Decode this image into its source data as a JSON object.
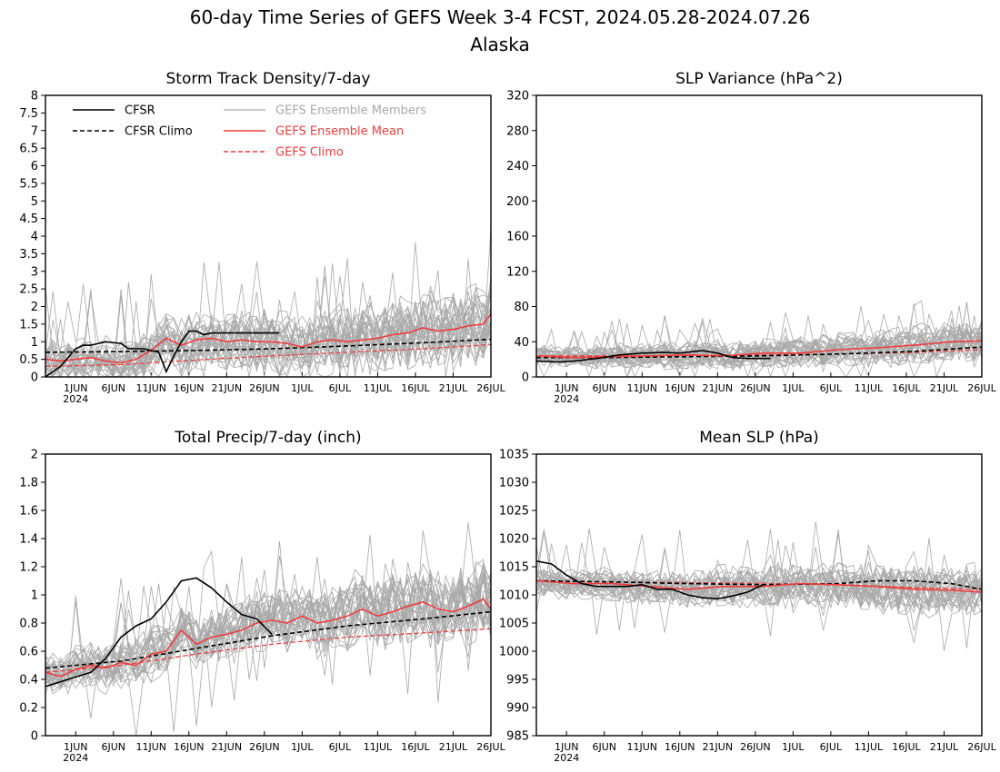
{
  "title": "60-day Time Series of GEFS Week 3-4 FCST, 2024.05.28-2024.07.26",
  "subtitle": "Alaska",
  "colors": {
    "member": "#a8a8a8",
    "cfsr": "#000000",
    "mean": "#f03c3c",
    "gefs_climo": "#f03c3c"
  },
  "legend": {
    "cfsr": "CFSR",
    "cfsr_climo": "CFSR Climo",
    "members": "GEFS Ensemble Members",
    "mean": "GEFS Ensemble Mean",
    "gefs_climo": "GEFS Climo"
  },
  "x_ticks": {
    "days": [
      4,
      9,
      14,
      19,
      24,
      29,
      34,
      39,
      44,
      49,
      54,
      59
    ],
    "labels": [
      "1JUN",
      "6JUN",
      "11JUN",
      "16JUN",
      "21JUN",
      "26JUN",
      "1JUL",
      "6JUL",
      "11JUL",
      "16JUL",
      "21JUL",
      "26JUL"
    ],
    "year_label": "2024"
  },
  "chart_data": [
    {
      "type": "line",
      "title": "Storm Track Density/7-day",
      "x_unit": "day index from 2024-05-28",
      "xlim": [
        0,
        59
      ],
      "ylim": [
        0,
        8
      ],
      "y_ticks": [
        "0",
        "0.5",
        "1",
        "1.5",
        "2",
        "2.5",
        "3",
        "3.5",
        "4",
        "4.5",
        "5",
        "5.5",
        "6",
        "6.5",
        "7",
        "7.5",
        "8"
      ],
      "member_count": 30,
      "member_spread": 0.7,
      "member_seed": 11,
      "series": [
        {
          "key": "cfsr",
          "style": "solid-black",
          "x": [
            0,
            2,
            4,
            5,
            6,
            8,
            10,
            11,
            13,
            15,
            16,
            17,
            18,
            19,
            20,
            21,
            22,
            24,
            26,
            28,
            31
          ],
          "y": [
            0.0,
            0.3,
            0.8,
            0.9,
            0.9,
            1.0,
            0.95,
            0.8,
            0.8,
            0.7,
            0.15,
            0.6,
            1.0,
            1.3,
            1.3,
            1.2,
            1.25,
            1.25,
            1.25,
            1.25,
            1.25
          ]
        },
        {
          "key": "cfsr_climo",
          "style": "dashed-black",
          "x": [
            0,
            10,
            20,
            30,
            40,
            50,
            59
          ],
          "y": [
            0.7,
            0.72,
            0.75,
            0.8,
            0.88,
            0.97,
            1.07
          ]
        },
        {
          "key": "mean",
          "style": "solid-red",
          "x": [
            0,
            2,
            4,
            6,
            8,
            10,
            12,
            14,
            16,
            18,
            20,
            22,
            24,
            26,
            28,
            30,
            32,
            34,
            36,
            38,
            40,
            42,
            44,
            46,
            48,
            50,
            52,
            54,
            56,
            58,
            59
          ],
          "y": [
            0.5,
            0.45,
            0.5,
            0.55,
            0.45,
            0.4,
            0.5,
            0.75,
            1.1,
            0.9,
            1.05,
            1.1,
            1.0,
            1.05,
            1.0,
            1.0,
            0.95,
            0.85,
            1.0,
            1.05,
            1.0,
            1.05,
            1.1,
            1.2,
            1.25,
            1.4,
            1.3,
            1.35,
            1.45,
            1.5,
            1.8
          ]
        },
        {
          "key": "gefs_climo",
          "style": "dashed-red",
          "x": [
            0,
            10,
            20,
            30,
            40,
            50,
            59
          ],
          "y": [
            0.3,
            0.35,
            0.48,
            0.6,
            0.7,
            0.8,
            0.92
          ]
        }
      ]
    },
    {
      "type": "line",
      "title": "SLP Variance (hPa^2)",
      "x_unit": "day index from 2024-05-28",
      "xlim": [
        0,
        59
      ],
      "ylim": [
        0,
        320
      ],
      "y_ticks": [
        "0",
        "40",
        "80",
        "120",
        "160",
        "200",
        "240",
        "280",
        "320"
      ],
      "member_count": 30,
      "member_spread": 14,
      "member_seed": 23,
      "series": [
        {
          "key": "cfsr",
          "style": "solid-black",
          "x": [
            0,
            3,
            5,
            8,
            11,
            14,
            17,
            19,
            22,
            24,
            26,
            28,
            31
          ],
          "y": [
            18,
            17,
            18,
            21,
            25,
            27,
            28,
            27,
            30,
            27,
            22,
            21,
            21
          ]
        },
        {
          "key": "cfsr_climo",
          "style": "dashed-black",
          "x": [
            0,
            10,
            20,
            30,
            40,
            50,
            59
          ],
          "y": [
            22,
            22,
            23,
            24,
            26,
            29,
            34
          ]
        },
        {
          "key": "mean",
          "style": "solid-red",
          "x": [
            0,
            5,
            10,
            15,
            20,
            25,
            30,
            35,
            40,
            45,
            50,
            55,
            59
          ],
          "y": [
            24,
            22,
            23,
            24,
            25,
            24,
            27,
            27,
            31,
            33,
            36,
            40,
            41
          ]
        },
        {
          "key": "gefs_climo",
          "style": "dashed-red",
          "x": [
            0,
            10,
            20,
            30,
            40,
            50,
            59
          ],
          "y": [
            24,
            24,
            24,
            25,
            26,
            28,
            31
          ]
        }
      ]
    },
    {
      "type": "line",
      "title": "Total Precip/7-day (inch)",
      "x_unit": "day index from 2024-05-28",
      "xlim": [
        0,
        59
      ],
      "ylim": [
        0,
        2
      ],
      "y_ticks": [
        "0",
        "0.2",
        "0.4",
        "0.6",
        "0.8",
        "1",
        "1.2",
        "1.4",
        "1.6",
        "1.8",
        "2"
      ],
      "member_count": 30,
      "member_spread": 0.18,
      "member_seed": 37,
      "series": [
        {
          "key": "cfsr",
          "style": "solid-black",
          "x": [
            0,
            3,
            6,
            8,
            10,
            12,
            14,
            16,
            18,
            20,
            22,
            24,
            26,
            28,
            30
          ],
          "y": [
            0.35,
            0.4,
            0.45,
            0.55,
            0.7,
            0.78,
            0.83,
            0.95,
            1.1,
            1.12,
            1.05,
            0.95,
            0.86,
            0.83,
            0.72
          ]
        },
        {
          "key": "cfsr_climo",
          "style": "dashed-black",
          "x": [
            0,
            10,
            20,
            30,
            40,
            50,
            59
          ],
          "y": [
            0.48,
            0.53,
            0.62,
            0.71,
            0.78,
            0.83,
            0.88
          ]
        },
        {
          "key": "mean",
          "style": "solid-red",
          "x": [
            0,
            2,
            4,
            6,
            8,
            10,
            12,
            14,
            16,
            18,
            20,
            22,
            24,
            26,
            28,
            30,
            32,
            34,
            36,
            38,
            40,
            42,
            44,
            46,
            48,
            50,
            52,
            54,
            56,
            58,
            59
          ],
          "y": [
            0.45,
            0.42,
            0.47,
            0.5,
            0.48,
            0.52,
            0.5,
            0.58,
            0.6,
            0.75,
            0.65,
            0.7,
            0.72,
            0.75,
            0.8,
            0.82,
            0.8,
            0.85,
            0.8,
            0.82,
            0.85,
            0.9,
            0.85,
            0.88,
            0.92,
            0.95,
            0.9,
            0.88,
            0.92,
            0.97,
            0.9
          ]
        },
        {
          "key": "gefs_climo",
          "style": "dashed-red",
          "x": [
            0,
            10,
            20,
            30,
            40,
            50,
            59
          ],
          "y": [
            0.45,
            0.5,
            0.58,
            0.65,
            0.7,
            0.73,
            0.76
          ]
        }
      ]
    },
    {
      "type": "line",
      "title": "Mean SLP (hPa)",
      "x_unit": "day index from 2024-05-28",
      "xlim": [
        0,
        59
      ],
      "ylim": [
        985,
        1035
      ],
      "y_ticks": [
        "985",
        "990",
        "995",
        "1000",
        "1005",
        "1010",
        "1015",
        "1020",
        "1025",
        "1030",
        "1035"
      ],
      "member_count": 30,
      "member_spread": 3.0,
      "member_seed": 53,
      "series": [
        {
          "key": "cfsr",
          "style": "solid-black",
          "x": [
            0,
            2,
            4,
            6,
            8,
            10,
            12,
            14,
            16,
            18,
            20,
            22,
            24,
            26,
            28,
            30
          ],
          "y": [
            1016,
            1015.5,
            1013.5,
            1012,
            1011.5,
            1011.5,
            1011.5,
            1011.8,
            1011,
            1011,
            1010,
            1009.5,
            1009.3,
            1009.8,
            1010.5,
            1011.8
          ]
        },
        {
          "key": "cfsr_climo",
          "style": "dashed-black",
          "x": [
            0,
            10,
            20,
            30,
            40,
            45,
            50,
            55,
            59
          ],
          "y": [
            1012.5,
            1012.3,
            1012,
            1011.8,
            1012,
            1012.5,
            1012.5,
            1012,
            1011
          ]
        },
        {
          "key": "mean",
          "style": "solid-red",
          "x": [
            0,
            5,
            10,
            15,
            20,
            25,
            30,
            35,
            40,
            45,
            50,
            55,
            59
          ],
          "y": [
            1012.5,
            1012,
            1012,
            1011.5,
            1011,
            1011.5,
            1011.5,
            1012,
            1011.8,
            1011.5,
            1011,
            1010.8,
            1010.5
          ]
        },
        {
          "key": "gefs_climo",
          "style": "dashed-red",
          "x": [
            0,
            10,
            20,
            30,
            40,
            50,
            59
          ],
          "y": [
            1012.5,
            1012.3,
            1012.2,
            1012,
            1011.8,
            1011.3,
            1011
          ]
        }
      ]
    }
  ]
}
